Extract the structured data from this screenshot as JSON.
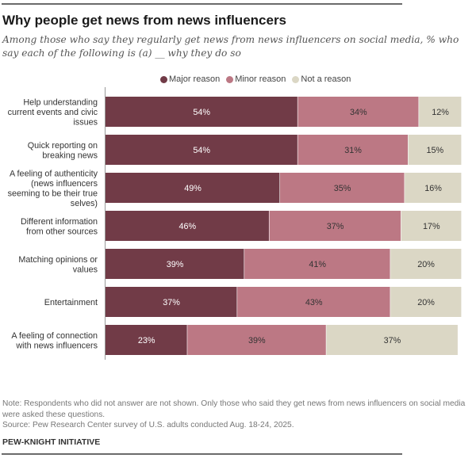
{
  "title": "Why people get news from news influencers",
  "subtitle": "Among those who say they regularly get news from news influencers on social media, % who say each of the following is (a) __ why they do so",
  "note": "Note: Respondents who did not answer are not shown. Only those who said they get news from news influencers on social media were asked these questions.",
  "source": "Source: Pew Research Center survey of U.S. adults conducted Aug. 18-24, 2025.",
  "org": "PEW-KNIGHT INITIATIVE",
  "chart_data": {
    "type": "bar",
    "orientation": "horizontal",
    "stacked": true,
    "title": "Why people get news from news influencers",
    "xlabel": "",
    "ylabel": "",
    "xlim": [
      0,
      100
    ],
    "grid": false,
    "legend_position": "top-center",
    "categories": [
      [
        "Help understanding",
        "current events and civic",
        "issues"
      ],
      [
        "Quick reporting on",
        "breaking news"
      ],
      [
        "A feeling of authenticity",
        "(news influencers",
        "seeming to be their true",
        "selves)"
      ],
      [
        "Different information",
        "from other sources"
      ],
      [
        "Matching opinions or",
        "values"
      ],
      [
        "Entertainment"
      ],
      [
        "A feeling of connection",
        "with news influencers"
      ]
    ],
    "series": [
      {
        "name": "Major reason",
        "color": "#713b47",
        "label_color": "#ffffff",
        "values": [
          54,
          54,
          49,
          46,
          39,
          37,
          23
        ]
      },
      {
        "name": "Minor reason",
        "color": "#bc7884",
        "label_color": "#333333",
        "values": [
          34,
          31,
          35,
          37,
          41,
          43,
          39
        ]
      },
      {
        "name": "Not a reason",
        "color": "#dbd7c5",
        "label_color": "#333333",
        "values": [
          12,
          15,
          16,
          17,
          20,
          20,
          37
        ]
      }
    ],
    "value_suffix": "%"
  }
}
